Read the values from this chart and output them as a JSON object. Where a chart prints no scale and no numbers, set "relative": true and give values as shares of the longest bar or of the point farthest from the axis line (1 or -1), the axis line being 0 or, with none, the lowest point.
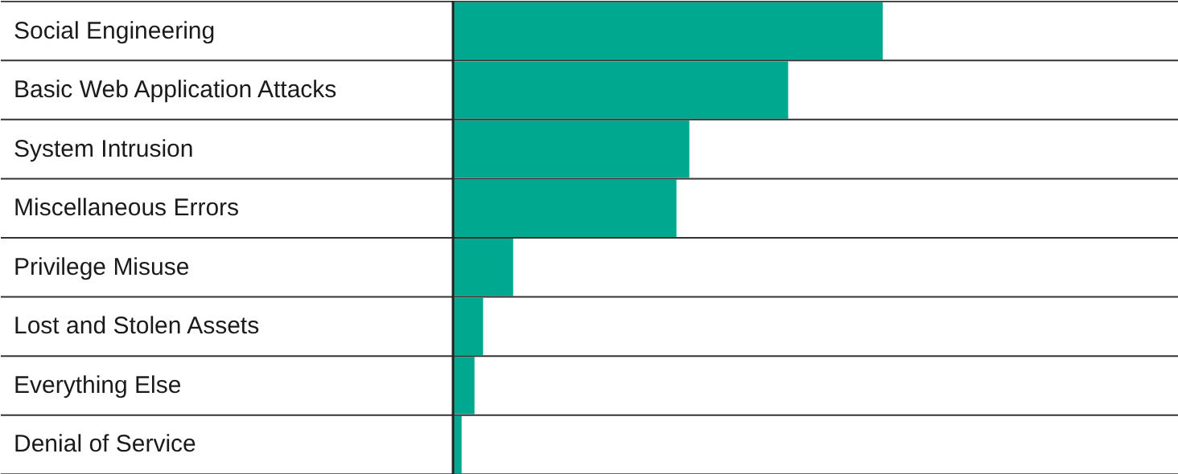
{
  "chart_data": {
    "type": "bar",
    "orientation": "horizontal",
    "relative": true,
    "categories": [
      "Social Engineering",
      "Basic Web Application Attacks",
      "System Intrusion",
      "Miscellaneous Errors",
      "Privilege Misuse",
      "Lost and Stolen Assets",
      "Everything Else",
      "Denial of Service"
    ],
    "values": [
      1,
      0.78,
      0.55,
      0.52,
      0.14,
      0.07,
      0.05,
      0.02
    ],
    "color": "#00a88f"
  }
}
